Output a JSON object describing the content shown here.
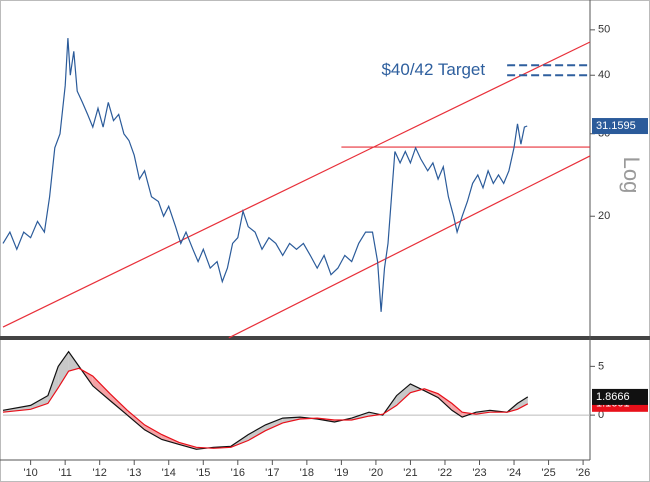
{
  "chart_data": [
    {
      "type": "line",
      "log_scale": true,
      "y_axis_label": "Log",
      "xlim": [
        2009.2,
        2026.2
      ],
      "ylim": [
        11.1,
        57.9
      ],
      "yticks": [
        20,
        30,
        40,
        50
      ],
      "x": [
        2009.2,
        2009.4,
        2009.6,
        2009.8,
        2010.0,
        2010.2,
        2010.4,
        2010.55,
        2010.7,
        2010.85,
        2011.0,
        2011.08,
        2011.15,
        2011.25,
        2011.35,
        2011.5,
        2011.65,
        2011.8,
        2011.95,
        2012.1,
        2012.25,
        2012.4,
        2012.55,
        2012.7,
        2012.85,
        2013.0,
        2013.15,
        2013.3,
        2013.5,
        2013.7,
        2013.85,
        2014.0,
        2014.2,
        2014.35,
        2014.5,
        2014.7,
        2014.85,
        2015.0,
        2015.2,
        2015.4,
        2015.55,
        2015.7,
        2015.85,
        2016.0,
        2016.15,
        2016.3,
        2016.5,
        2016.7,
        2016.9,
        2017.1,
        2017.3,
        2017.5,
        2017.7,
        2017.9,
        2018.1,
        2018.3,
        2018.5,
        2018.7,
        2018.9,
        2019.1,
        2019.3,
        2019.5,
        2019.7,
        2019.9,
        2020.05,
        2020.15,
        2020.25,
        2020.35,
        2020.45,
        2020.55,
        2020.7,
        2020.85,
        2021.0,
        2021.15,
        2021.3,
        2021.5,
        2021.65,
        2021.8,
        2021.95,
        2022.1,
        2022.25,
        2022.35,
        2022.5,
        2022.65,
        2022.8,
        2022.95,
        2023.1,
        2023.25,
        2023.4,
        2023.55,
        2023.7,
        2023.85,
        2024.0,
        2024.1,
        2024.2,
        2024.3,
        2024.38
      ],
      "series": [
        {
          "color": "#2b5b9a",
          "values": [
            17.5,
            18.5,
            17,
            18.5,
            18,
            19.5,
            18.5,
            22,
            28,
            30,
            38,
            48,
            40,
            45,
            37,
            35,
            33,
            31,
            34,
            31,
            35,
            32,
            33,
            30,
            29,
            27,
            24,
            25,
            22,
            21.5,
            20,
            21,
            19,
            17.5,
            18.5,
            17,
            16,
            17,
            15.5,
            16,
            14.5,
            15.5,
            17.5,
            18,
            20.5,
            19,
            18.5,
            17,
            18,
            17.5,
            16.5,
            17.5,
            17,
            17.5,
            16.5,
            15.5,
            16.5,
            15,
            15.5,
            16.5,
            16,
            17.5,
            18.5,
            18.5,
            16,
            12.5,
            15.5,
            17.5,
            22,
            27.5,
            26,
            27.5,
            26,
            28,
            26.5,
            25,
            26,
            24,
            25.5,
            22,
            20,
            18.5,
            20,
            21.5,
            23.5,
            24.5,
            23,
            25,
            23.5,
            24.5,
            23.5,
            25,
            28,
            31.5,
            28.5,
            31,
            31.1595
          ]
        }
      ],
      "channel_color": "#e8303a",
      "channel_lines": [
        {
          "x": [
            2009.2,
            2026.2
          ],
          "values": [
            11.6,
            47.1
          ]
        },
        {
          "x": [
            2015.74,
            2026.2
          ],
          "values": [
            11.0,
            26.9
          ]
        },
        {
          "x": [
            2019.0,
            2026.2
          ],
          "values": [
            28.1,
            28.1
          ]
        }
      ],
      "target": {
        "label": "$40/42 Target",
        "x": [
          2023.8,
          2026.2
        ],
        "values": [
          40,
          42
        ],
        "color": "#2e5f9e"
      }
    },
    {
      "type": "macd",
      "xlim": [
        2009.2,
        2026.2
      ],
      "xticks": [
        {
          "value": 2010,
          "label": "'10"
        },
        {
          "value": 2011,
          "label": "'11"
        },
        {
          "value": 2012,
          "label": "'12"
        },
        {
          "value": 2013,
          "label": "'13"
        },
        {
          "value": 2014,
          "label": "'14"
        },
        {
          "value": 2015,
          "label": "'15"
        },
        {
          "value": 2016,
          "label": "'16"
        },
        {
          "value": 2017,
          "label": "'17"
        },
        {
          "value": 2018,
          "label": "'18"
        },
        {
          "value": 2019,
          "label": "'19"
        },
        {
          "value": 2020,
          "label": "'20"
        },
        {
          "value": 2021,
          "label": "'21"
        },
        {
          "value": 2022,
          "label": "'22"
        },
        {
          "value": 2023,
          "label": "'23"
        },
        {
          "value": 2024,
          "label": "'24"
        },
        {
          "value": 2025,
          "label": "'25"
        },
        {
          "value": 2026,
          "label": "'26"
        }
      ],
      "ylim": [
        -4.6,
        7.6
      ],
      "yticks": [
        0,
        5
      ],
      "x": [
        2009.2,
        2010.0,
        2010.5,
        2010.8,
        2011.1,
        2011.4,
        2011.8,
        2012.3,
        2012.8,
        2013.3,
        2013.8,
        2014.3,
        2014.8,
        2015.3,
        2015.8,
        2016.3,
        2016.8,
        2017.3,
        2017.8,
        2018.3,
        2018.8,
        2019.3,
        2019.8,
        2020.2,
        2020.6,
        2021.0,
        2021.4,
        2021.8,
        2022.2,
        2022.5,
        2022.9,
        2023.3,
        2023.8,
        2024.1,
        2024.4
      ],
      "series": [
        {
          "color": "#111111",
          "values": [
            0.5,
            1,
            2,
            5,
            6.5,
            5,
            3,
            1.5,
            0,
            -1.5,
            -2.5,
            -3,
            -3.5,
            -3.3,
            -3.2,
            -2,
            -1,
            -0.3,
            -0.2,
            -0.4,
            -0.7,
            -0.3,
            0.3,
            0,
            2,
            3.2,
            2.5,
            1.8,
            0.5,
            -0.2,
            0.3,
            0.5,
            0.3,
            1.2,
            1.8666
          ]
        },
        {
          "color": "#e8101a",
          "values": [
            0.3,
            0.6,
            1.2,
            2.8,
            4.5,
            4.8,
            4,
            2.2,
            0.5,
            -1,
            -2,
            -2.8,
            -3.3,
            -3.4,
            -3.3,
            -2.6,
            -1.6,
            -0.8,
            -0.4,
            -0.3,
            -0.5,
            -0.5,
            -0.1,
            0.1,
            1,
            2.3,
            2.7,
            2.2,
            1.2,
            0.3,
            0.1,
            0.3,
            0.3,
            0.6,
            1.1601
          ]
        }
      ],
      "fill_colors": [
        "#c8c8c8",
        "#f4a3a6"
      ]
    }
  ]
}
